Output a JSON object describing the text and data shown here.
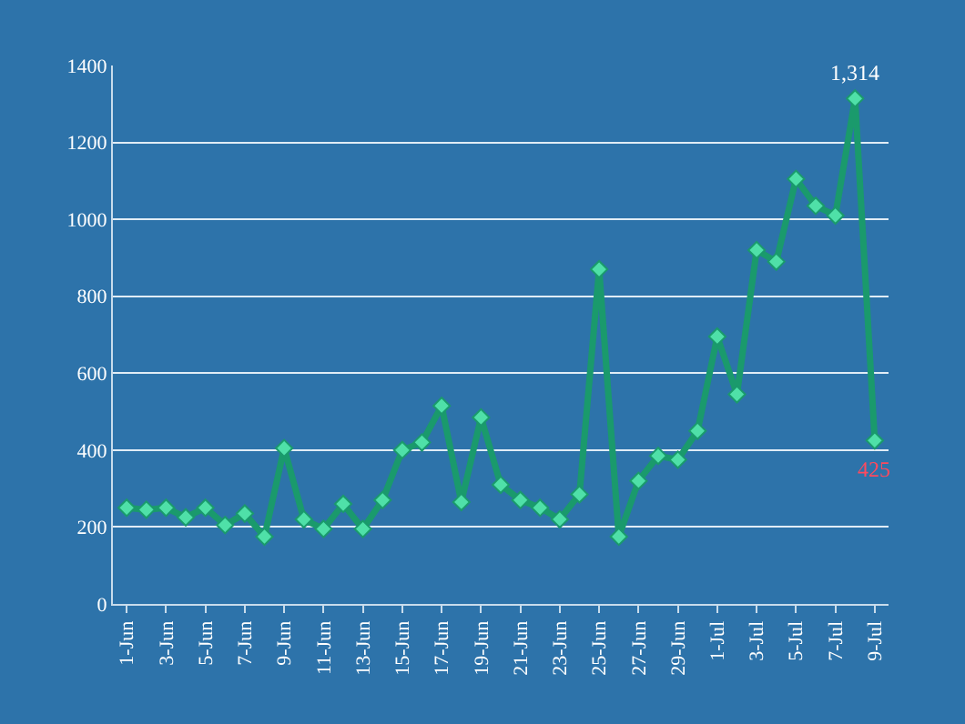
{
  "chart_data": {
    "type": "line",
    "categories": [
      "1-Jun",
      null,
      "3-Jun",
      null,
      "5-Jun",
      null,
      "7-Jun",
      null,
      "9-Jun",
      null,
      "11-Jun",
      null,
      "13-Jun",
      null,
      "15-Jun",
      null,
      "17-Jun",
      null,
      "19-Jun",
      null,
      "21-Jun",
      null,
      "23-Jun",
      null,
      "25-Jun",
      null,
      "27-Jun",
      null,
      "29-Jun",
      null,
      "1-Jul",
      null,
      "3-Jul",
      null,
      "5-Jul",
      null,
      "7-Jul",
      null,
      "9-Jul"
    ],
    "series": [
      {
        "color": "#1a9a6c",
        "values": [
          250,
          245,
          250,
          225,
          250,
          205,
          235,
          175,
          405,
          220,
          195,
          260,
          195,
          270,
          400,
          420,
          515,
          265,
          485,
          310,
          270,
          250,
          220,
          285,
          870,
          175,
          320,
          385,
          375,
          450,
          695,
          545,
          920,
          890,
          1105,
          1035,
          1010,
          1314,
          425
        ],
        "value_labels": [
          null,
          null,
          null,
          null,
          null,
          null,
          null,
          null,
          null,
          null,
          null,
          null,
          null,
          null,
          null,
          null,
          null,
          null,
          null,
          null,
          null,
          null,
          null,
          null,
          null,
          null,
          null,
          null,
          null,
          null,
          null,
          null,
          null,
          null,
          null,
          null,
          null,
          "1,314",
          "425"
        ]
      }
    ],
    "ylim": [
      0,
      1400
    ],
    "yticks": [
      0,
      200,
      400,
      600,
      800,
      1000,
      1200,
      1400
    ],
    "grid": "y",
    "legend": false,
    "marker": "diamond",
    "line_style": "solid"
  }
}
